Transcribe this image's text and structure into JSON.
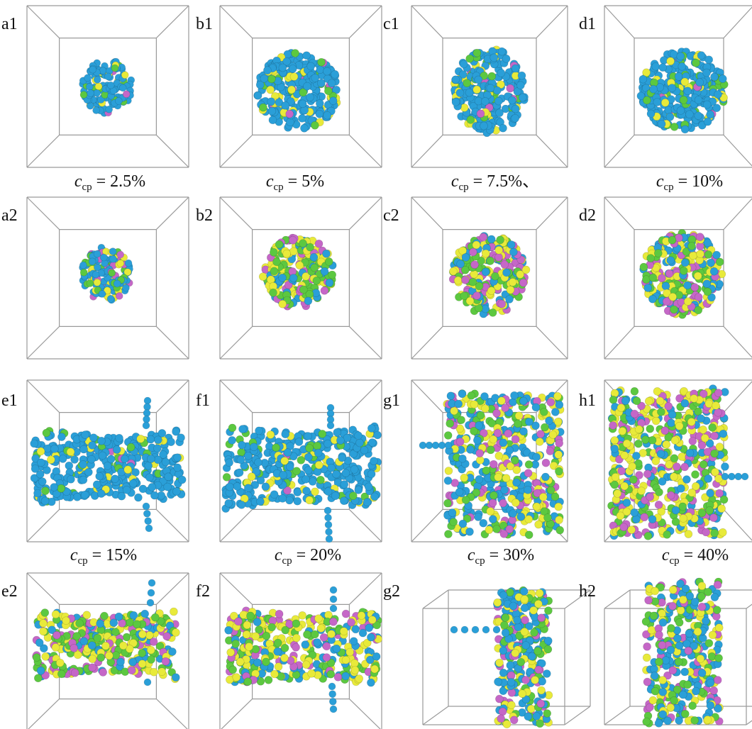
{
  "figure": {
    "panels": [
      {
        "label": "a1"
      },
      {
        "label": "b1"
      },
      {
        "label": "c1"
      },
      {
        "label": "d1"
      },
      {
        "label": "a2"
      },
      {
        "label": "b2"
      },
      {
        "label": "c2"
      },
      {
        "label": "d2"
      },
      {
        "label": "e1"
      },
      {
        "label": "f1"
      },
      {
        "label": "g1"
      },
      {
        "label": "h1"
      },
      {
        "label": "e2"
      },
      {
        "label": "f2"
      },
      {
        "label": "g2"
      },
      {
        "label": "h2"
      }
    ],
    "captions": [
      {
        "symbol": "c",
        "subscript": "cp",
        "value": "= 2.5%"
      },
      {
        "symbol": "c",
        "subscript": "cp",
        "value": "= 5%"
      },
      {
        "symbol": "c",
        "subscript": "cp",
        "value": "= 7.5%、"
      },
      {
        "symbol": "c",
        "subscript": "cp",
        "value": "= 10%"
      },
      {
        "symbol": "c",
        "subscript": "cp",
        "value": "= 15%"
      },
      {
        "symbol": "c",
        "subscript": "cp",
        "value": "= 20%"
      },
      {
        "symbol": "c",
        "subscript": "cp",
        "value": "= 30%"
      },
      {
        "symbol": "c",
        "subscript": "cp",
        "value": "= 40%"
      }
    ],
    "particle_colors": {
      "blue": "#2a9fd8",
      "yellow": "#e8ea3a",
      "green": "#5cc840",
      "magenta": "#c567c7"
    },
    "box_line_color": "#9a9a9a"
  }
}
